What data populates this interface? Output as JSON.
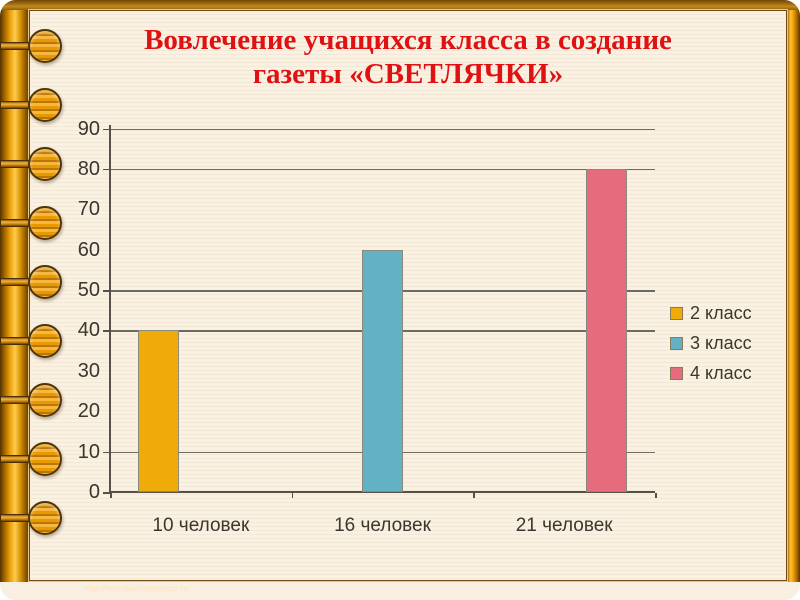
{
  "slide": {
    "title_line1": "Вовлечение учащихся класса в создание",
    "title_line2": "газеты «СВЕТЛЯЧКИ»",
    "title_color": "#e01112"
  },
  "footer": {
    "url": "http://edu-teacherzv.ucoz.ru"
  },
  "decorations": {
    "binding_rings_count": 9,
    "frame_gold_color": "#ef9e00"
  },
  "chart_data": {
    "type": "bar",
    "title": "Вовлечение учащихся класса в создание газеты «СВЕТЛЯЧКИ»",
    "categories": [
      "10 человек",
      "16 человек",
      "21 человек"
    ],
    "series": [
      {
        "name": "2 класс",
        "color": "#efac08",
        "values": [
          40,
          null,
          null
        ]
      },
      {
        "name": "3 класс",
        "color": "#62b2c4",
        "values": [
          null,
          60,
          null
        ]
      },
      {
        "name": "4 класс",
        "color": "#e56b7d",
        "values": [
          null,
          null,
          80
        ]
      }
    ],
    "bars_rendered": [
      {
        "category": "10 человек",
        "series_index": 0,
        "series": "2 класс",
        "value": 40
      },
      {
        "category": "16 человек",
        "series_index": 1,
        "series": "3 класс",
        "value": 60
      },
      {
        "category": "21 человек",
        "series_index": 2,
        "series": "4 класс",
        "value": 80
      }
    ],
    "xlabel": "",
    "ylabel": "",
    "ylim": [
      0,
      90
    ],
    "ytick_step": 10,
    "yticks": [
      90,
      80,
      70,
      60,
      50,
      40,
      30,
      20,
      10,
      0
    ],
    "gridlines_at": [
      90,
      80,
      50,
      40,
      10,
      0
    ],
    "grid": "partial-horizontal",
    "legend_position": "right",
    "plot_background": "#f8efe1",
    "text_color": "#3b362e"
  }
}
